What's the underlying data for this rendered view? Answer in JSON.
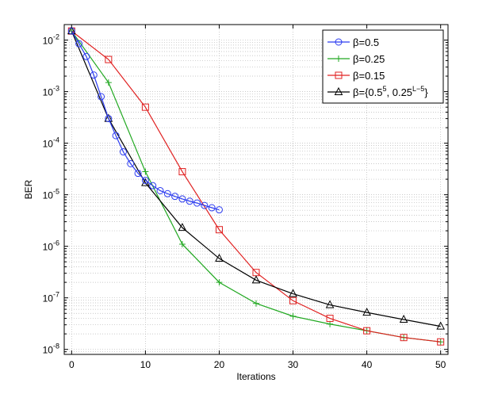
{
  "chart_data": {
    "type": "line",
    "xlabel": "Iterations",
    "ylabel": "BER",
    "xlim": [
      -1,
      51
    ],
    "ylim": [
      8e-09,
      0.02
    ],
    "yscale": "log",
    "grid": true,
    "legend_position": "top-right",
    "x_ticks": [
      0,
      10,
      20,
      30,
      40,
      50
    ],
    "x_tick_labels": [
      "0",
      "10",
      "20",
      "30",
      "40",
      "50"
    ],
    "y_ticks": [
      0.01,
      0.001,
      0.0001,
      1e-05,
      1e-06,
      1e-07,
      1e-08
    ],
    "y_tick_labels": [
      {
        "base": "10",
        "exp": "-2"
      },
      {
        "base": "10",
        "exp": "-3"
      },
      {
        "base": "10",
        "exp": "-4"
      },
      {
        "base": "10",
        "exp": "-5"
      },
      {
        "base": "10",
        "exp": "-6"
      },
      {
        "base": "10",
        "exp": "-7"
      },
      {
        "base": "10",
        "exp": "-8"
      }
    ],
    "series": [
      {
        "name": "β=0.5",
        "legend": [
          {
            "t": "β=0.5"
          }
        ],
        "color": "#2b3bf0",
        "marker": "circle",
        "x": [
          0,
          1,
          2,
          3,
          4,
          5,
          6,
          7,
          8,
          9,
          10,
          11,
          12,
          13,
          14,
          15,
          16,
          17,
          18,
          19,
          20
        ],
        "y": [
          0.015,
          0.0085,
          0.0048,
          0.0021,
          0.0008,
          0.0003,
          0.00014,
          6.8e-05,
          4e-05,
          2.6e-05,
          1.9e-05,
          1.5e-05,
          1.2e-05,
          1.05e-05,
          9.3e-06,
          8.3e-06,
          7.5e-06,
          6.9e-06,
          6.2e-06,
          5.6e-06,
          5.1e-06
        ]
      },
      {
        "name": "β=0.25",
        "legend": [
          {
            "t": "β=0.25"
          }
        ],
        "color": "#20a820",
        "marker": "plus",
        "x": [
          0,
          5,
          10,
          15,
          20,
          25,
          30,
          35,
          40,
          45,
          50
        ],
        "y": [
          0.015,
          0.0015,
          2.8e-05,
          1.1e-06,
          2e-07,
          7.8e-08,
          4.4e-08,
          3.1e-08,
          2.3e-08,
          1.7e-08,
          1.4e-08
        ]
      },
      {
        "name": "β=0.15",
        "legend": [
          {
            "t": "β=0.15"
          }
        ],
        "color": "#e02020",
        "marker": "square",
        "x": [
          0,
          5,
          10,
          15,
          20,
          25,
          30,
          35,
          40,
          45,
          50
        ],
        "y": [
          0.015,
          0.0042,
          0.0005,
          2.8e-05,
          2.1e-06,
          3.1e-07,
          8.8e-08,
          4e-08,
          2.3e-08,
          1.7e-08,
          1.4e-08
        ]
      },
      {
        "name": "β={0.5^5, 0.25^(L−5)}",
        "legend": [
          {
            "t": "β={0.5"
          },
          {
            "t": "5",
            "sup": true
          },
          {
            "t": ", 0.25"
          },
          {
            "t": "L−5",
            "sup": true
          },
          {
            "t": "}"
          }
        ],
        "color": "#000000",
        "marker": "triangle",
        "x": [
          0,
          5,
          10,
          15,
          20,
          25,
          30,
          35,
          40,
          45,
          50
        ],
        "y": [
          0.015,
          0.0003,
          1.7e-05,
          2.3e-06,
          5.8e-07,
          2.2e-07,
          1.2e-07,
          7.3e-08,
          5.2e-08,
          3.8e-08,
          2.8e-08
        ]
      }
    ]
  }
}
